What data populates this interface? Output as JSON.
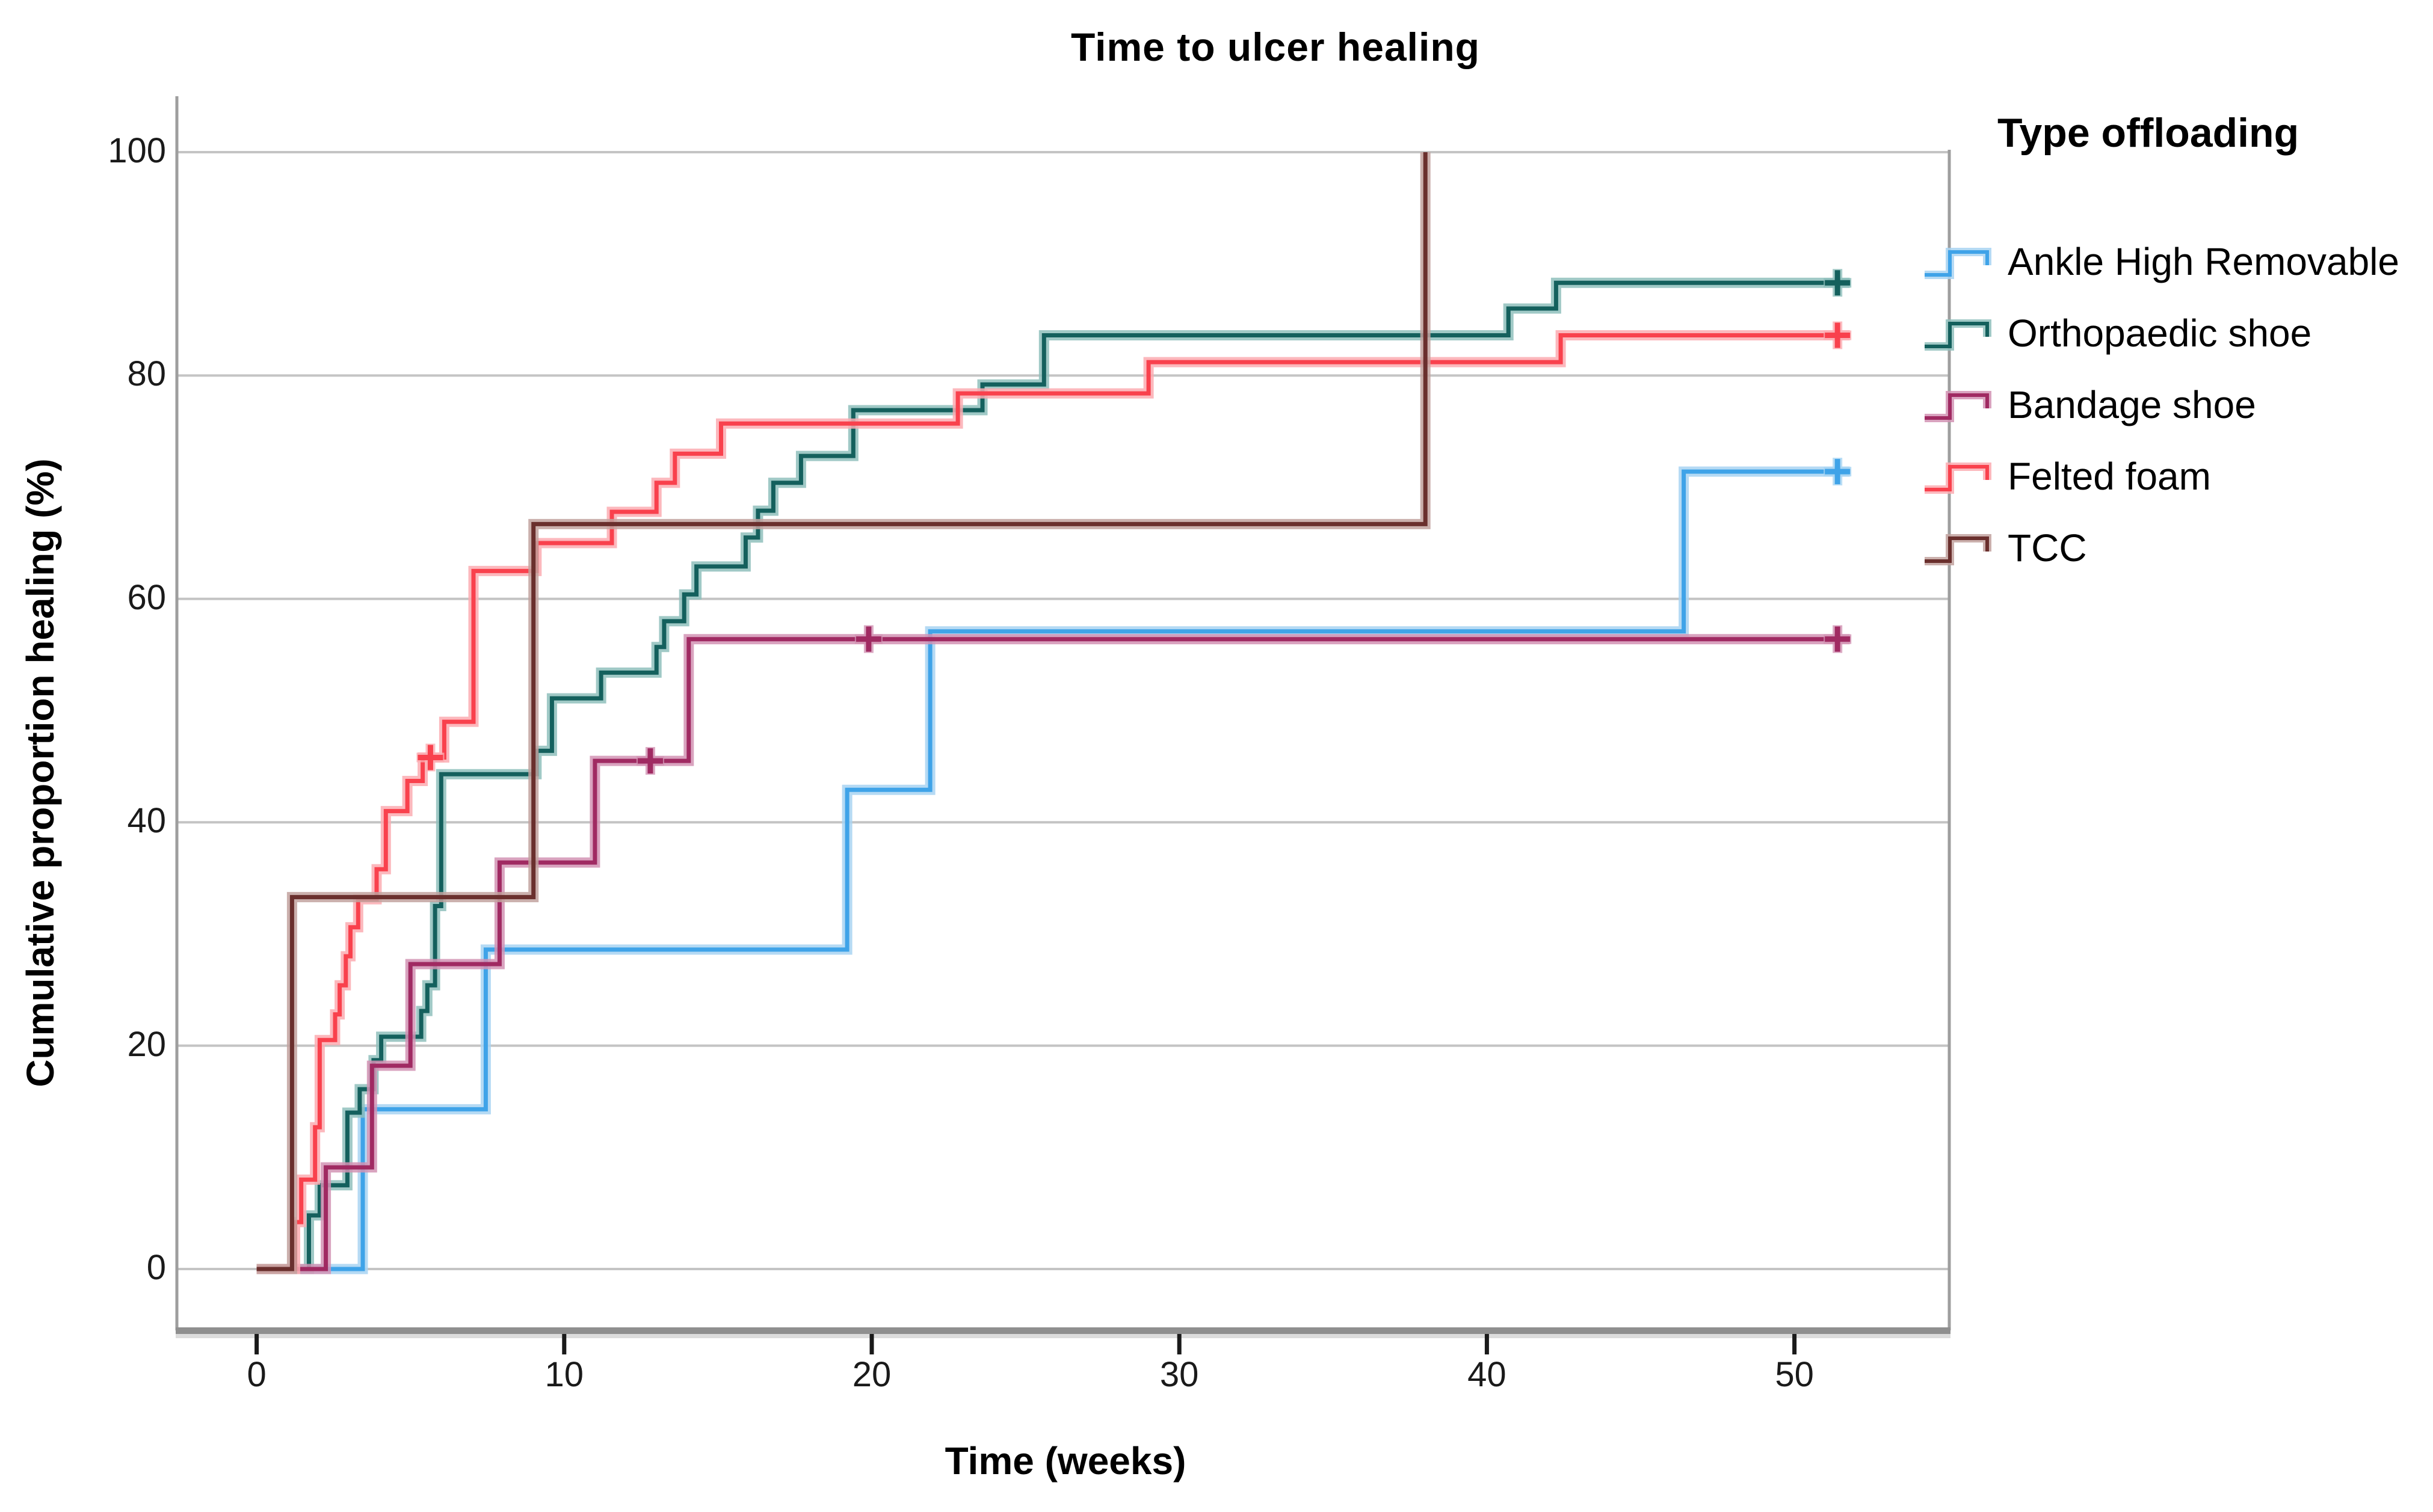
{
  "chart_data": {
    "type": "line",
    "subtype": "kaplan-meier-step-curves",
    "title": "Time to ulcer healing",
    "x_axis": {
      "label": "Time (weeks)",
      "ticks": [
        "0",
        "10",
        "20",
        "30",
        "40",
        "50"
      ],
      "tick_values": [
        0,
        10,
        20,
        30,
        40,
        50
      ],
      "range_weeks": [
        0,
        55
      ]
    },
    "y_axis": {
      "label": "Cumulative proportion healing (%)",
      "ticks": [
        "0",
        "20",
        "40",
        "60",
        "80",
        "100"
      ],
      "tick_values": [
        0,
        20,
        40,
        60,
        80,
        100
      ],
      "range": [
        0,
        100
      ],
      "grid": true
    },
    "legend": {
      "title": "Type offloading",
      "position": "right"
    },
    "colors": {
      "grid": "#c4c4c4",
      "frame": "#9e9e9e",
      "axis": "#8f8f8f",
      "tick": "#1a1a1a"
    },
    "series": [
      {
        "name": "Ankle High Removable",
        "color": "#3FA3E8",
        "halo": "#A8D4F2",
        "steps": [
          [
            3.45,
            14.3
          ],
          [
            7.45,
            28.6
          ],
          [
            19.2,
            42.9
          ],
          [
            21.9,
            57.1
          ],
          [
            46.4,
            71.4
          ]
        ],
        "end_week": 51.8,
        "censors": [
          [
            51.4,
            71.4
          ]
        ]
      },
      {
        "name": "Orthopaedic shoe",
        "color": "#14605D",
        "halo": "#8FBFBC",
        "steps": [
          [
            1.7,
            4.8
          ],
          [
            2.05,
            7.5
          ],
          [
            2.95,
            14.0
          ],
          [
            3.35,
            16.1
          ],
          [
            3.8,
            18.7
          ],
          [
            4.05,
            20.8
          ],
          [
            5.35,
            23.1
          ],
          [
            5.55,
            25.4
          ],
          [
            5.8,
            32.5
          ],
          [
            6.0,
            44.3
          ],
          [
            9.1,
            46.4
          ],
          [
            9.6,
            51.1
          ],
          [
            11.2,
            53.4
          ],
          [
            13.0,
            55.7
          ],
          [
            13.25,
            58.0
          ],
          [
            13.9,
            60.4
          ],
          [
            14.3,
            62.9
          ],
          [
            15.9,
            65.5
          ],
          [
            16.3,
            67.9
          ],
          [
            16.8,
            70.4
          ],
          [
            17.7,
            72.8
          ],
          [
            19.4,
            76.9
          ],
          [
            23.6,
            79.2
          ],
          [
            25.6,
            83.6
          ],
          [
            40.7,
            86.0
          ],
          [
            42.25,
            88.3
          ]
        ],
        "end_week": 51.8,
        "censors": [
          [
            51.4,
            88.3
          ]
        ]
      },
      {
        "name": "Bandage shoe",
        "color": "#A02A62",
        "halo": "#D293B4",
        "steps": [
          [
            2.25,
            9.1
          ],
          [
            3.75,
            18.2
          ],
          [
            5.0,
            27.3
          ],
          [
            7.9,
            36.4
          ],
          [
            11.0,
            45.5
          ],
          [
            14.05,
            56.4
          ]
        ],
        "end_week": 51.8,
        "censors": [
          [
            12.8,
            45.5
          ],
          [
            19.9,
            56.4
          ],
          [
            51.4,
            56.4
          ]
        ]
      },
      {
        "name": "Felted foam",
        "color": "#F9414D",
        "halo": "#FBACB1",
        "steps": [
          [
            1.25,
            4.2
          ],
          [
            1.45,
            8.0
          ],
          [
            1.9,
            12.7
          ],
          [
            2.05,
            20.5
          ],
          [
            2.55,
            22.8
          ],
          [
            2.7,
            25.4
          ],
          [
            2.9,
            28.0
          ],
          [
            3.05,
            30.6
          ],
          [
            3.3,
            33.1
          ],
          [
            3.9,
            35.8
          ],
          [
            4.2,
            41.0
          ],
          [
            4.9,
            43.7
          ],
          [
            5.4,
            45.8
          ],
          [
            6.1,
            49.0
          ],
          [
            7.05,
            62.5
          ],
          [
            9.1,
            65.0
          ],
          [
            11.55,
            67.8
          ],
          [
            13.0,
            70.4
          ],
          [
            13.6,
            73.0
          ],
          [
            15.1,
            75.7
          ],
          [
            22.8,
            78.4
          ],
          [
            29.0,
            81.2
          ],
          [
            42.4,
            83.6
          ]
        ],
        "end_week": 51.8,
        "censors": [
          [
            5.65,
            45.8
          ],
          [
            51.4,
            83.6
          ]
        ]
      },
      {
        "name": "TCC",
        "color": "#6A2F2D",
        "halo": "#C2A29F",
        "steps": [
          [
            1.15,
            33.3
          ],
          [
            9.0,
            66.7
          ],
          [
            38.0,
            100.0
          ]
        ],
        "end_week": 38.0,
        "censors": []
      }
    ]
  }
}
